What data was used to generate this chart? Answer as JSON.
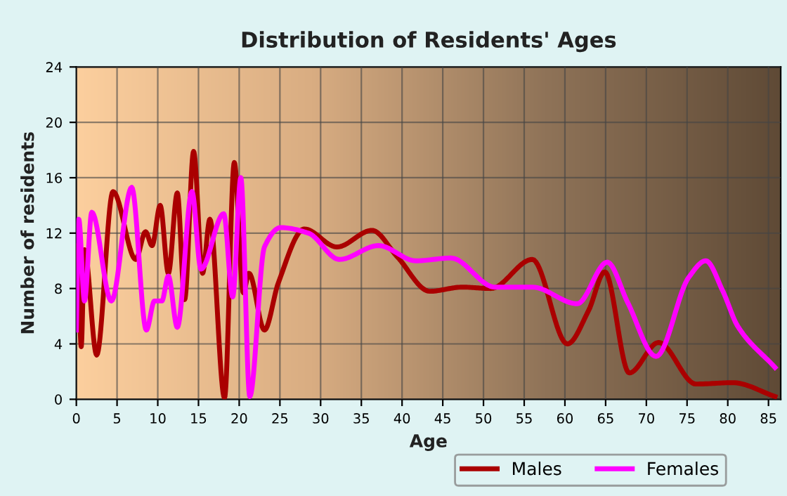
{
  "chart_data": {
    "type": "line",
    "title": "Distribution of Residents' Ages",
    "xlabel": "Age",
    "ylabel": "Number of residents",
    "xlim": [
      0,
      86.5
    ],
    "xticks": [
      0,
      5,
      10,
      15,
      20,
      25,
      30,
      35,
      40,
      45,
      50,
      55,
      60,
      65,
      70,
      75,
      80,
      85
    ],
    "ylim": [
      0,
      24
    ],
    "yticks": [
      0,
      4,
      8,
      12,
      16,
      20,
      24
    ],
    "grid": true,
    "legend": "bottom",
    "marker": "none",
    "line_style": "solid",
    "series": [
      {
        "name": "Males",
        "color": "#aa0000",
        "x": [
          0.2,
          0.6,
          1.0,
          2.5,
          4.5,
          7.3,
          8.5,
          9.3,
          10.3,
          11.3,
          12.4,
          13.3,
          14.4,
          15.5,
          16.4,
          18.2,
          19.4,
          20.5,
          21.2,
          23.1,
          24.8,
          28.0,
          32.0,
          36.3,
          39.4,
          43.4,
          47.4,
          50.9,
          56.0,
          60.3,
          62.9,
          64.9,
          67.9,
          71.5,
          76.1,
          80.6,
          85.8
        ],
        "values": [
          11.1,
          3.8,
          10.8,
          3.2,
          15.0,
          10.1,
          12.1,
          11.1,
          14.0,
          9.1,
          14.9,
          7.2,
          17.9,
          9.1,
          13.0,
          0.1,
          17.1,
          7.7,
          9.1,
          5.0,
          8.4,
          12.3,
          11.0,
          12.2,
          10.3,
          7.8,
          8.1,
          8.0,
          10.1,
          4.0,
          6.4,
          9.2,
          1.9,
          4.1,
          1.1,
          1.2,
          0.2
        ]
      },
      {
        "name": "Females",
        "color": "#ff00ff",
        "x": [
          0.0,
          0.3,
          1.0,
          1.9,
          4.3,
          6.8,
          8.6,
          9.6,
          10.5,
          11.3,
          12.4,
          14.2,
          15.3,
          18.1,
          19.2,
          20.2,
          21.3,
          23.1,
          25.1,
          28.5,
          32.3,
          37.1,
          41.7,
          46.0,
          51.4,
          56.0,
          61.5,
          65.2,
          67.7,
          71.2,
          75.2,
          77.3,
          79.4,
          81.2,
          85.8
        ],
        "values": [
          5.0,
          13.0,
          7.1,
          13.5,
          7.1,
          15.3,
          5.0,
          7.1,
          7.1,
          8.9,
          5.2,
          15.0,
          9.4,
          13.4,
          7.4,
          16.0,
          0.2,
          11.0,
          12.4,
          12.0,
          10.1,
          11.1,
          10.0,
          10.2,
          8.1,
          8.1,
          6.9,
          9.9,
          7.0,
          3.1,
          8.8,
          10.0,
          7.8,
          5.3,
          2.3
        ]
      }
    ]
  }
}
